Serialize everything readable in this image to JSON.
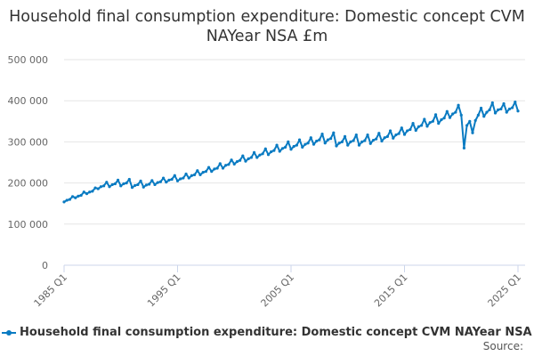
{
  "chart_data": {
    "type": "line",
    "title": "Household final consumption expenditure: Domestic concept CVM NAYear NSA £m",
    "x": {
      "start": "1985 Q1",
      "end": "2025 Q1",
      "frequency": "quarterly"
    },
    "x_tick_labels": [
      "1985 Q1",
      "1995 Q1",
      "2005 Q1",
      "2015 Q1",
      "2025 Q1"
    ],
    "y_tick_labels": [
      "0",
      "100 000",
      "200 000",
      "300 000",
      "400 000",
      "500 000"
    ],
    "ylim": [
      0,
      500000
    ],
    "grid": true,
    "legend_placement": "bottom",
    "series": [
      {
        "name": "Household final consumption expenditure: Domestic concept CVM NAYear NSA £m",
        "color": "#0a7bc2",
        "values": [
          154000,
          158000,
          160000,
          167000,
          164000,
          168000,
          170000,
          178000,
          174000,
          178000,
          180000,
          188000,
          186000,
          191000,
          193000,
          202000,
          191000,
          196000,
          198000,
          207000,
          193000,
          198000,
          200000,
          209000,
          189000,
          194000,
          196000,
          205000,
          190000,
          195000,
          197000,
          206000,
          196000,
          201000,
          203000,
          212000,
          202000,
          207000,
          209000,
          218000,
          205000,
          210000,
          212000,
          222000,
          212000,
          218000,
          220000,
          230000,
          220000,
          226000,
          228000,
          238000,
          228000,
          234000,
          236000,
          247000,
          236000,
          243000,
          245000,
          256000,
          246000,
          252000,
          255000,
          266000,
          253000,
          259000,
          262000,
          274000,
          262000,
          268000,
          271000,
          283000,
          269000,
          276000,
          279000,
          292000,
          277000,
          284000,
          287000,
          300000,
          282000,
          289000,
          292000,
          305000,
          287000,
          294000,
          297000,
          310000,
          294000,
          302000,
          305000,
          319000,
          297000,
          305000,
          308000,
          322000,
          290000,
          297000,
          300000,
          313000,
          292000,
          300000,
          303000,
          317000,
          292000,
          300000,
          303000,
          317000,
          296000,
          304000,
          307000,
          321000,
          302000,
          310000,
          313000,
          327000,
          309000,
          317000,
          320000,
          334000,
          318000,
          327000,
          330000,
          345000,
          328000,
          337000,
          340000,
          355000,
          338000,
          347000,
          350000,
          366000,
          345000,
          354000,
          358000,
          374000,
          359000,
          368000,
          372000,
          389000,
          365000,
          285000,
          340000,
          350000,
          322000,
          352000,
          365000,
          382000,
          362000,
          372000,
          378000,
          395000,
          370000,
          378000,
          380000,
          393000,
          372000,
          380000,
          383000,
          397000,
          375000
        ]
      }
    ]
  },
  "source_label": "Source:"
}
